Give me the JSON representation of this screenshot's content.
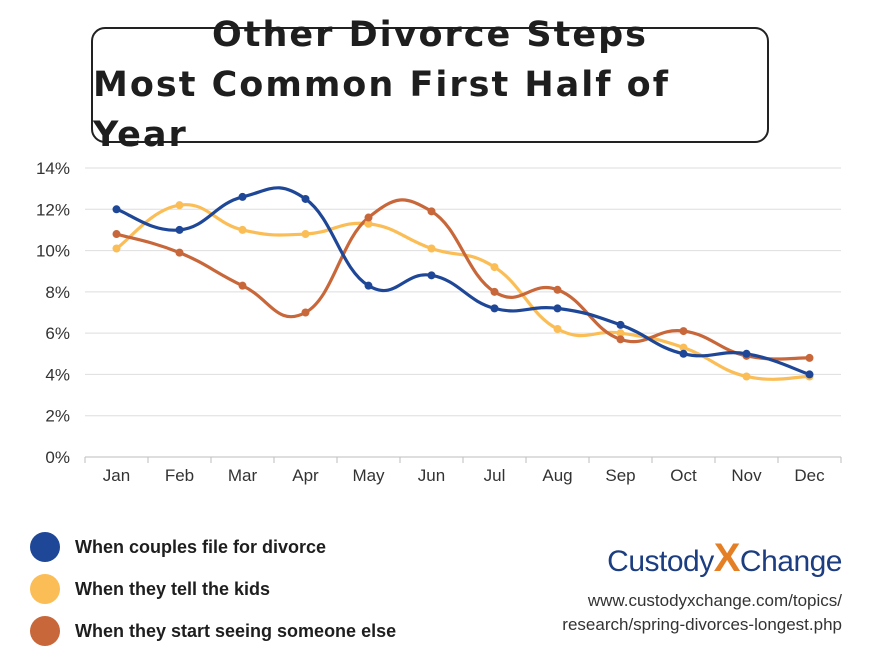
{
  "title": {
    "line1": "Other Divorce Steps",
    "line2": "Most Common First Half of Year"
  },
  "chart_data": {
    "type": "line",
    "categories": [
      "Jan",
      "Feb",
      "Mar",
      "Apr",
      "May",
      "Jun",
      "Jul",
      "Aug",
      "Sep",
      "Oct",
      "Nov",
      "Dec"
    ],
    "ylim": [
      0,
      14
    ],
    "yticks": [
      0,
      2,
      4,
      6,
      8,
      10,
      12,
      14
    ],
    "ytick_labels": [
      "0%",
      "2%",
      "4%",
      "6%",
      "8%",
      "10%",
      "12%",
      "14%"
    ],
    "grid": true,
    "legend_position": "bottom-left",
    "series": [
      {
        "name": "When couples file for divorce",
        "color": "#1f4797",
        "values": [
          12.0,
          11.0,
          12.6,
          12.5,
          8.3,
          8.8,
          7.2,
          7.2,
          6.4,
          5.0,
          5.0,
          4.0
        ]
      },
      {
        "name": "When they tell the kids",
        "color": "#fbbd55",
        "values": [
          10.1,
          12.2,
          11.0,
          10.8,
          11.3,
          10.1,
          9.2,
          6.2,
          6.0,
          5.3,
          3.9,
          3.9
        ]
      },
      {
        "name": "When they start seeing someone else",
        "color": "#c8673a",
        "values": [
          10.8,
          9.9,
          8.3,
          7.0,
          11.6,
          11.9,
          8.0,
          8.1,
          5.7,
          6.1,
          4.9,
          4.8
        ]
      }
    ]
  },
  "legend": [
    {
      "label": "When couples file for divorce",
      "color": "#1f4797"
    },
    {
      "label": "When they tell the kids",
      "color": "#fbbd55"
    },
    {
      "label": "When they start seeing someone else",
      "color": "#c8673a"
    }
  ],
  "brand": {
    "part1": "Custody",
    "x": "X",
    "part2": "Change"
  },
  "url": {
    "line1": "www.custodyxchange.com/topics/",
    "line2": "research/spring-divorces-longest.php"
  }
}
